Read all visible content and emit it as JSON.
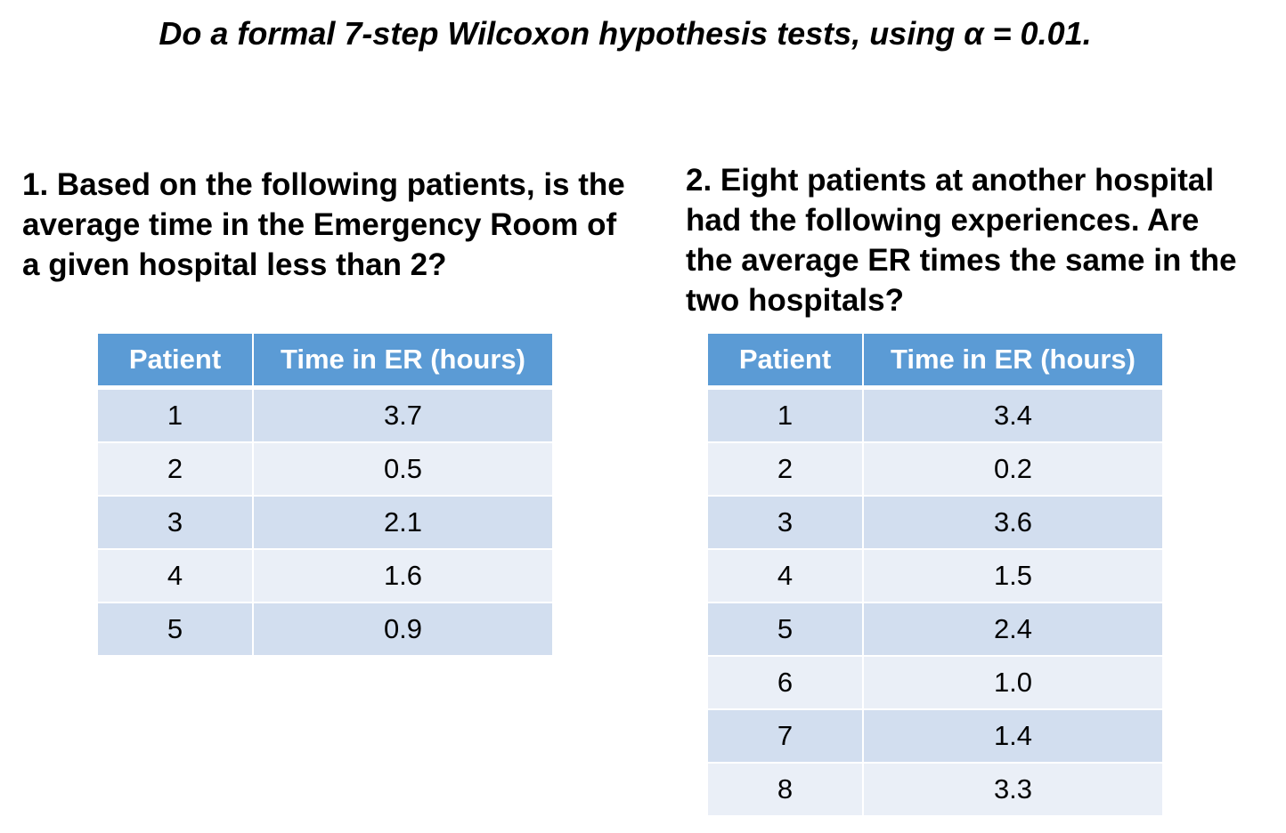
{
  "title": "Do a formal 7-step Wilcoxon hypothesis tests, using α = 0.01.",
  "question1": {
    "lines": [
      "1. Based on the following patients, is the",
      "average time in the Emergency Room of",
      "a given hospital less than 2?"
    ],
    "table": {
      "headers": [
        "Patient",
        "Time in ER (hours)"
      ],
      "rows": [
        [
          "1",
          "3.7"
        ],
        [
          "2",
          "0.5"
        ],
        [
          "3",
          "2.1"
        ],
        [
          "4",
          "1.6"
        ],
        [
          "5",
          "0.9"
        ]
      ]
    }
  },
  "question2": {
    "lines": [
      "2. Eight patients at another hospital",
      "had the following experiences.  Are",
      "the average ER times the same in the",
      "two hospitals?"
    ],
    "table": {
      "headers": [
        "Patient",
        "Time in ER (hours)"
      ],
      "rows": [
        [
          "1",
          "3.4"
        ],
        [
          "2",
          "0.2"
        ],
        [
          "3",
          "3.6"
        ],
        [
          "4",
          "1.5"
        ],
        [
          "5",
          "2.4"
        ],
        [
          "6",
          "1.0"
        ],
        [
          "7",
          "1.4"
        ],
        [
          "8",
          "3.3"
        ]
      ]
    }
  },
  "colors": {
    "header_bg": "#5b9bd5",
    "row_odd": "#d2deef",
    "row_even": "#eaeff7"
  }
}
